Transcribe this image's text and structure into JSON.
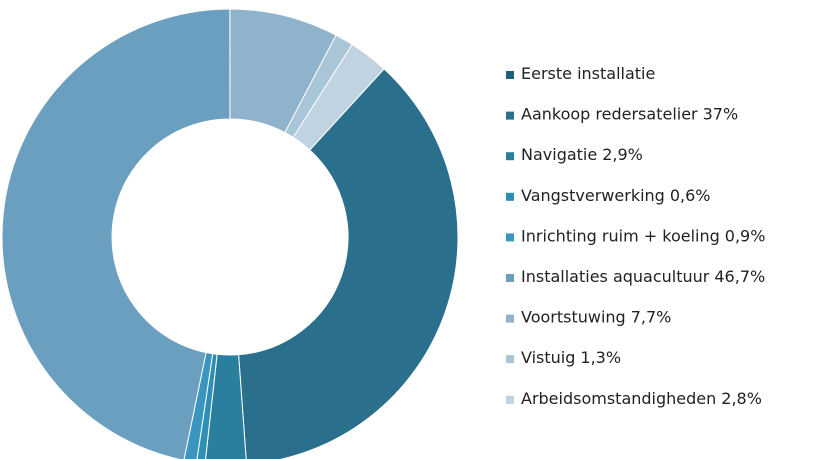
{
  "chart_data": {
    "type": "donut",
    "categories": [
      "Eerste installatie",
      "Aankoop redersatelier",
      "Navigatie",
      "Vangstverwerking",
      "Inrichting ruim + koeling",
      "Installaties aquacultuur",
      "Voortstuwing",
      "Vistuig",
      "Arbeidsomstandigheden"
    ],
    "values": [
      null,
      37,
      2.9,
      0.6,
      0.9,
      46.7,
      7.7,
      1.3,
      2.8
    ],
    "value_labels": [
      null,
      "37%",
      "2,9%",
      "0,6%",
      "0,9%",
      "46,7%",
      "7,7%",
      "1,3%",
      "2,8%"
    ],
    "colors": [
      "#1f5f7a",
      "#2a6f8c",
      "#2a7f9e",
      "#2e8fb5",
      "#3a95c0",
      "#6b9fc0",
      "#8fb3cc",
      "#a9c5d8",
      "#bfd3e0"
    ],
    "legend": "right"
  }
}
